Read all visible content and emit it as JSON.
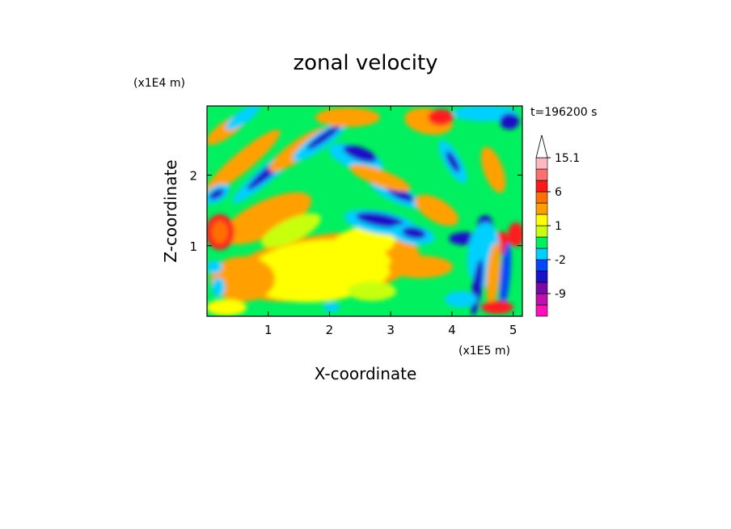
{
  "chart_data": {
    "type": "heatmap",
    "title": "zonal velocity",
    "xlabel": "X-coordinate",
    "ylabel": "Z-coordinate",
    "x_unit": "(x1E5 m)",
    "y_unit": "(x1E4 m)",
    "time_label": "t=196200 s",
    "xlim": [
      0,
      5.15
    ],
    "ylim": [
      0,
      2.98
    ],
    "x_ticks": [
      "1",
      "2",
      "3",
      "4",
      "5"
    ],
    "x_tick_values": [
      1,
      2,
      3,
      4,
      5
    ],
    "y_ticks": [
      "1",
      "2"
    ],
    "y_tick_values": [
      1,
      2
    ],
    "colorbar": {
      "orientation": "vertical",
      "extend": "max",
      "levels": [
        -12,
        -9,
        -6,
        -4,
        -2,
        -1,
        0,
        1,
        2,
        3,
        6,
        9,
        12,
        15.1
      ],
      "colors": [
        "#ff10b8",
        "#c010b0",
        "#7a0aa8",
        "#1a10c8",
        "#0048ff",
        "#00d0ff",
        "#00f060",
        "#c8ff10",
        "#ffff00",
        "#ffa000",
        "#ff7000",
        "#ff1a1a",
        "#ff7070",
        "#ffb8c0"
      ],
      "labels": [
        "15.1",
        "6",
        "1",
        "-2",
        "-9"
      ],
      "label_values": [
        15.1,
        6,
        1,
        -2,
        -9
      ]
    }
  }
}
